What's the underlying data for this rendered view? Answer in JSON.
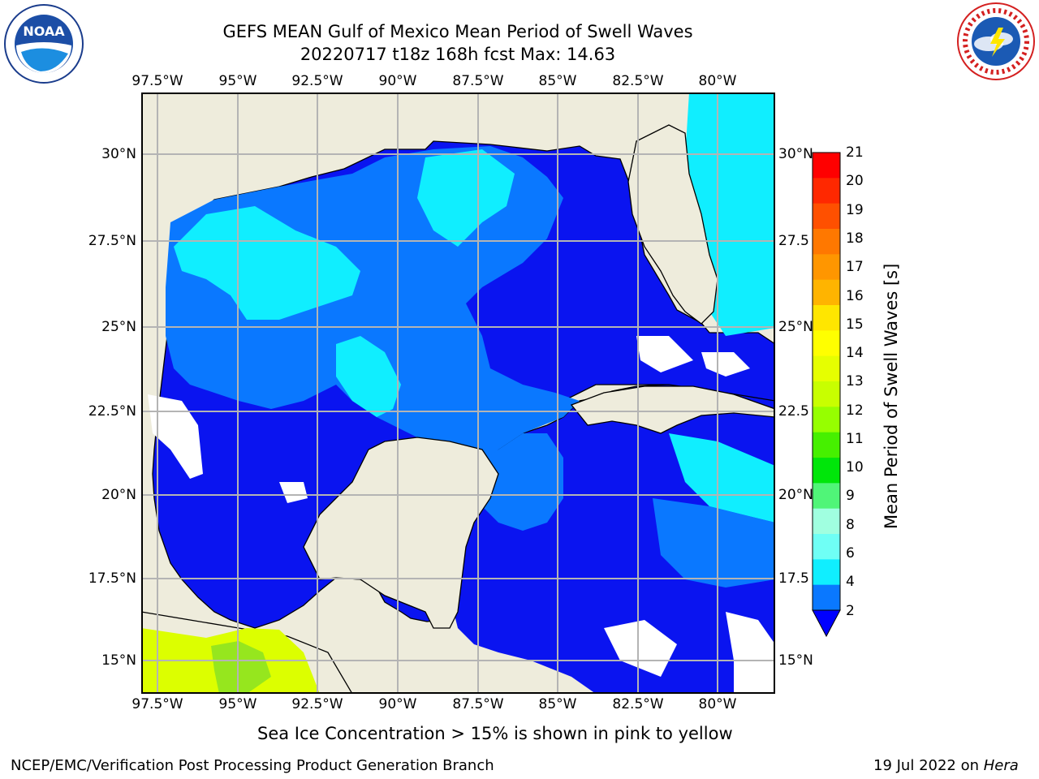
{
  "title": {
    "line1": "GEFS MEAN Gulf of Mexico Mean Period of Swell Waves",
    "line2": "20220717 t18z 168h fcst   Max: 14.63"
  },
  "logos": {
    "left": {
      "icon": "noaa-logo",
      "text": "NOAA",
      "ring_text": "NATIONAL OCEANIC AND ATMOSPHERIC ADMINISTRATION · U.S. DEPARTMENT OF COMMERCE"
    },
    "right": {
      "icon": "nws-logo",
      "ring_text": "NATIONAL WEATHER SERVICE"
    }
  },
  "map": {
    "lon_labels": [
      "97.5°W",
      "95°W",
      "92.5°W",
      "90°W",
      "87.5°W",
      "85°W",
      "82.5°W",
      "80°W"
    ],
    "lat_labels_left": [
      "30°N",
      "27.5°N",
      "25°N",
      "22.5°N",
      "20°N",
      "17.5°N",
      "15°N"
    ],
    "lat_labels_right": [
      "30°N",
      "27.5",
      "25°N",
      "22.5",
      "20°N",
      "17.5",
      "15°N"
    ],
    "colors": {
      "land": "#eeecdc",
      "ocean_dark": "#0a14f0",
      "ocean_mid": "#0a78ff",
      "ocean_light": "#10eeff",
      "ice_yellow": "#dcff00",
      "ice_green": "#96e61e",
      "grid": "#b4b4b4"
    }
  },
  "colorbar": {
    "title": "Mean Period of Swell Waves [s]",
    "labels": [
      "21",
      "20",
      "19",
      "18",
      "17",
      "16",
      "15",
      "14",
      "13",
      "12",
      "11",
      "10",
      "9",
      "8",
      "6",
      "4",
      "2"
    ],
    "colors": [
      "#ff0000",
      "#ff2800",
      "#ff5000",
      "#ff7800",
      "#ff9600",
      "#ffb400",
      "#ffe600",
      "#ffff00",
      "#e6ff00",
      "#c8ff00",
      "#96ff00",
      "#46f000",
      "#00e60a",
      "#50f578",
      "#a0ffe0",
      "#6ffff5",
      "#10eeff",
      "#0a78ff"
    ],
    "extend_color": "#0000ff"
  },
  "subtitle": "Sea Ice Concentration > 15% is shown in pink to yellow",
  "footer": {
    "left": "NCEP/EMC/Verification Post Processing Product Generation Branch",
    "date": "19 Jul 2022 on ",
    "host": "Hera"
  }
}
